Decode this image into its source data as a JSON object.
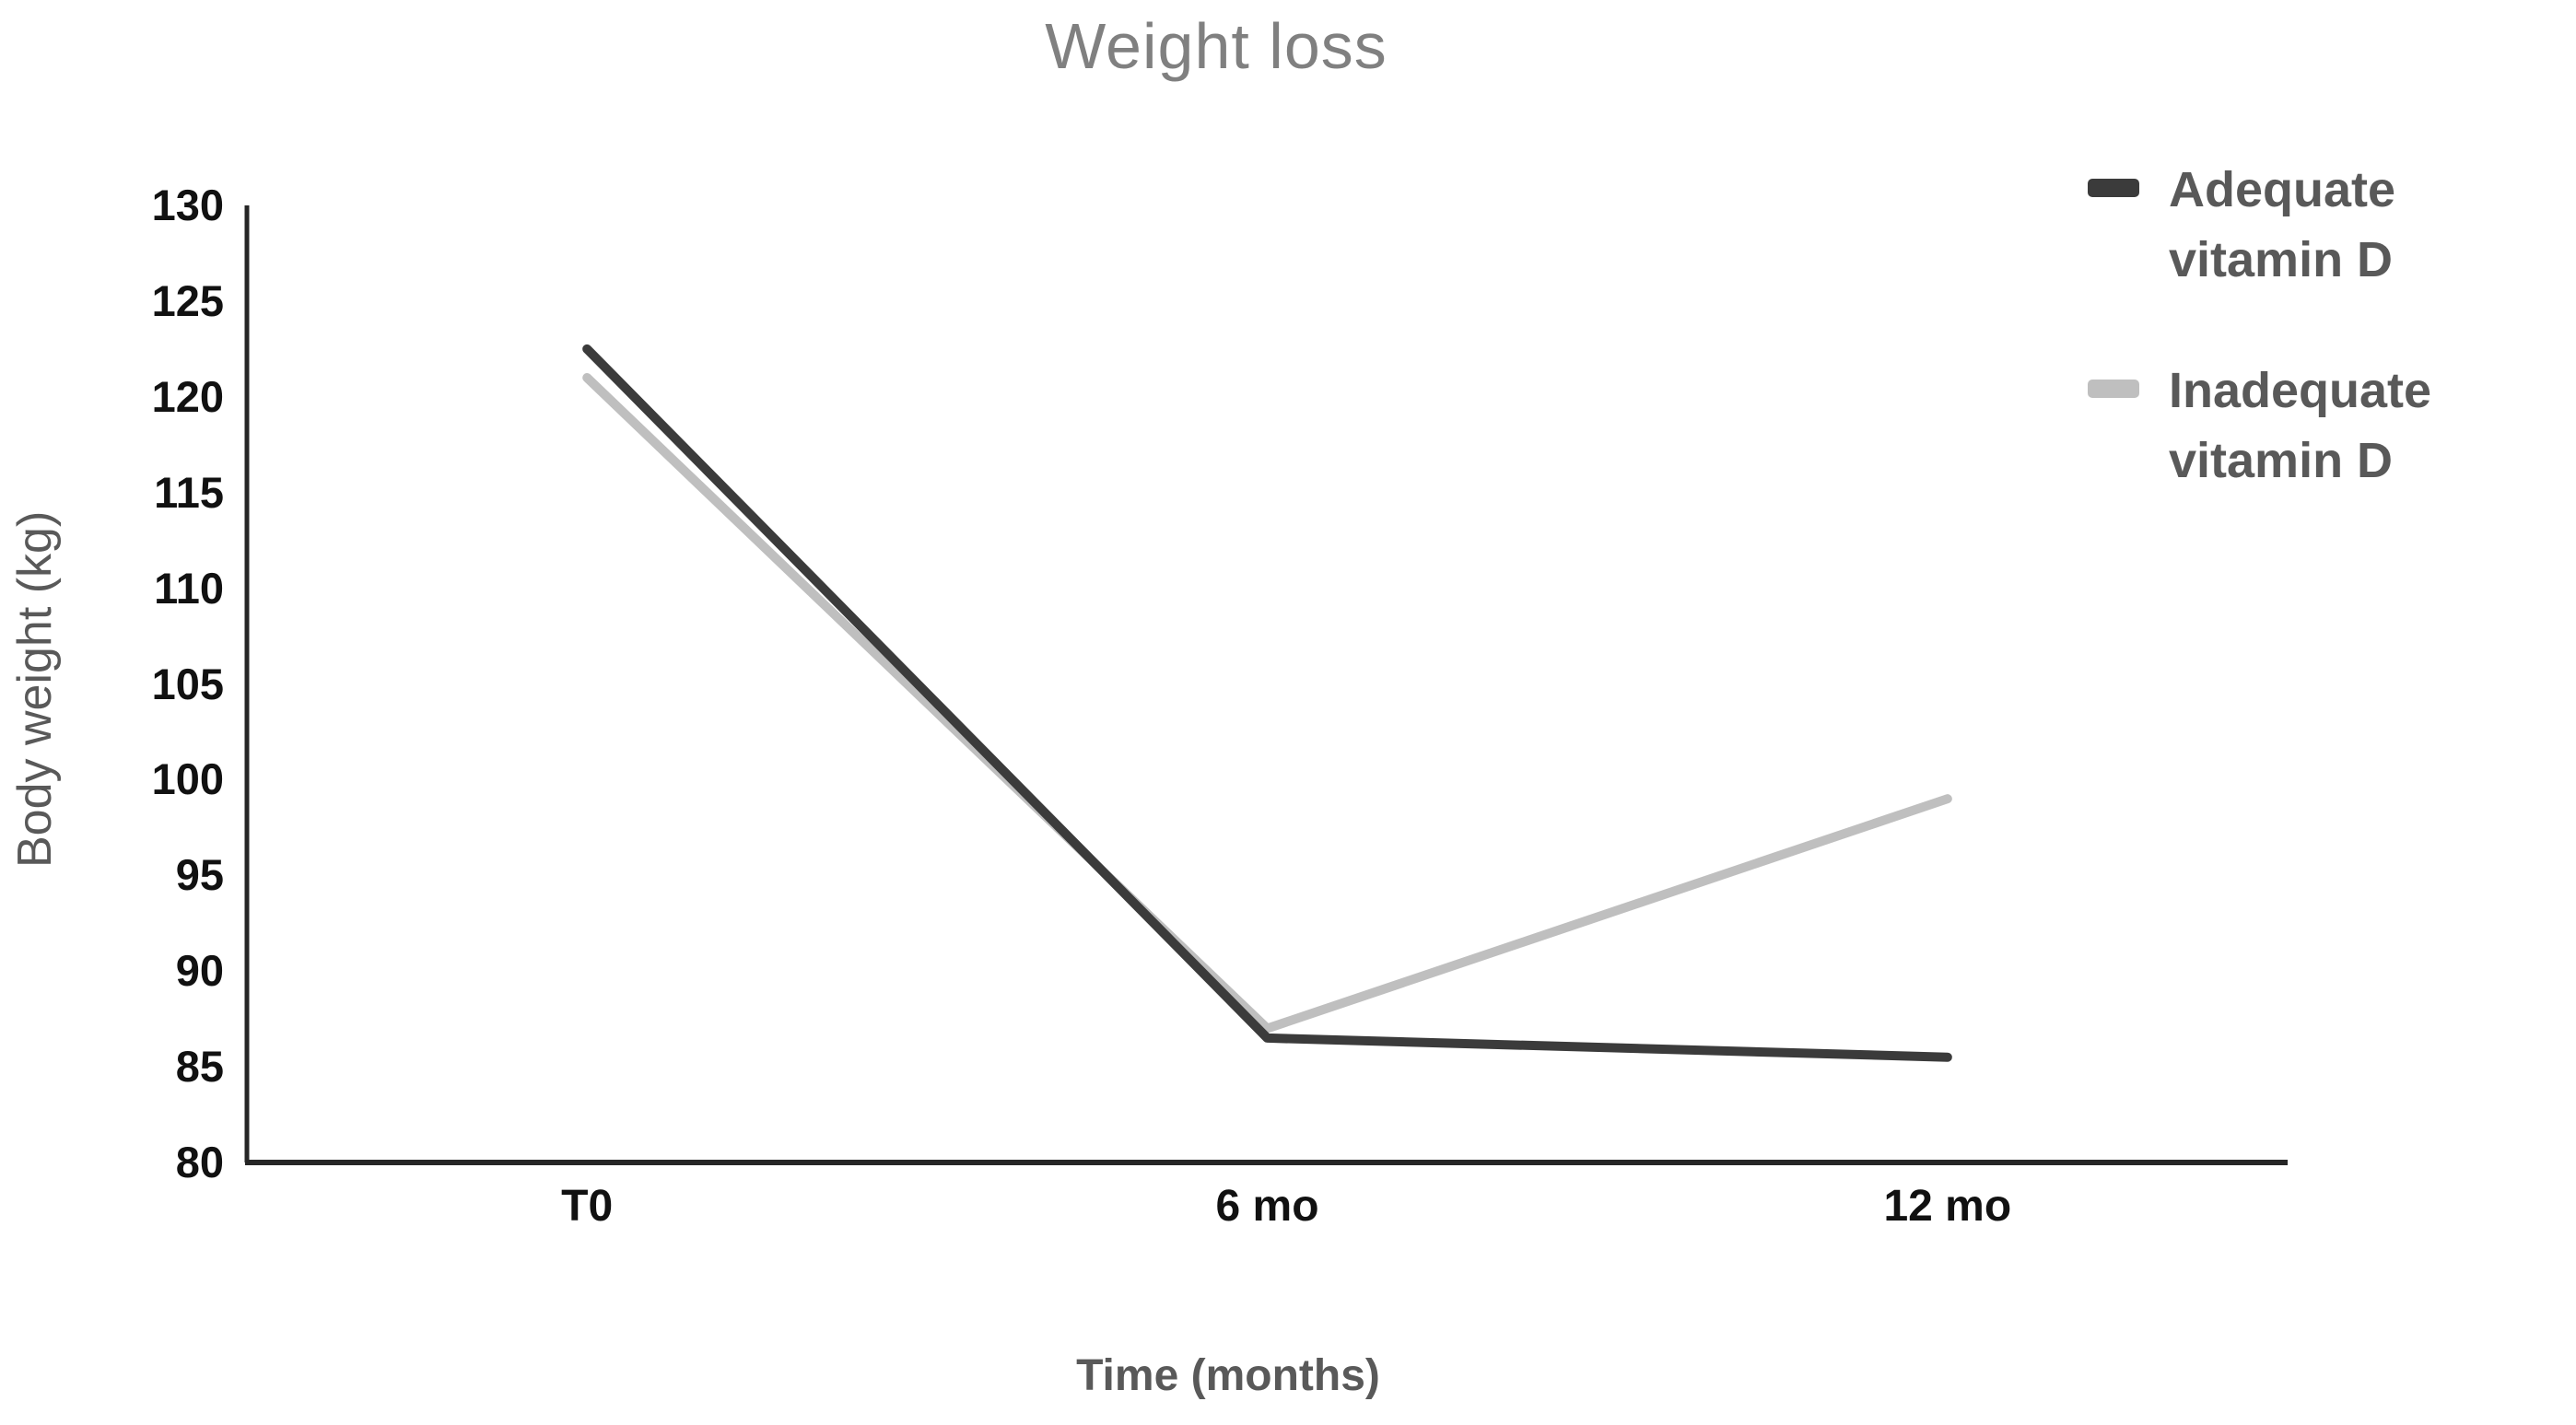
{
  "title": "Weight loss",
  "chart_data": {
    "type": "line",
    "title": "Weight loss",
    "xlabel": "Time (months)",
    "ylabel": "Body weight (kg)",
    "categories": [
      "T0",
      "6 mo",
      "12 mo"
    ],
    "series": [
      {
        "name": "Adequate vitamin D",
        "color": "#3b3b3b",
        "values": [
          122.5,
          86.5,
          85.5
        ]
      },
      {
        "name": "Inadequate vitamin D",
        "color": "#bfbfbf",
        "values": [
          121,
          87,
          99
        ]
      }
    ],
    "ylim": [
      80,
      130
    ],
    "yticks": [
      130,
      125,
      120,
      115,
      110,
      105,
      100,
      95,
      90,
      85,
      80
    ],
    "grid": false,
    "markers": false,
    "legend_position": "top-right"
  },
  "colors": {
    "title_text": "#808080",
    "axis_line": "#262626",
    "tick_label": "#111111",
    "axis_title": "#595959",
    "legend_text": "#595959"
  }
}
